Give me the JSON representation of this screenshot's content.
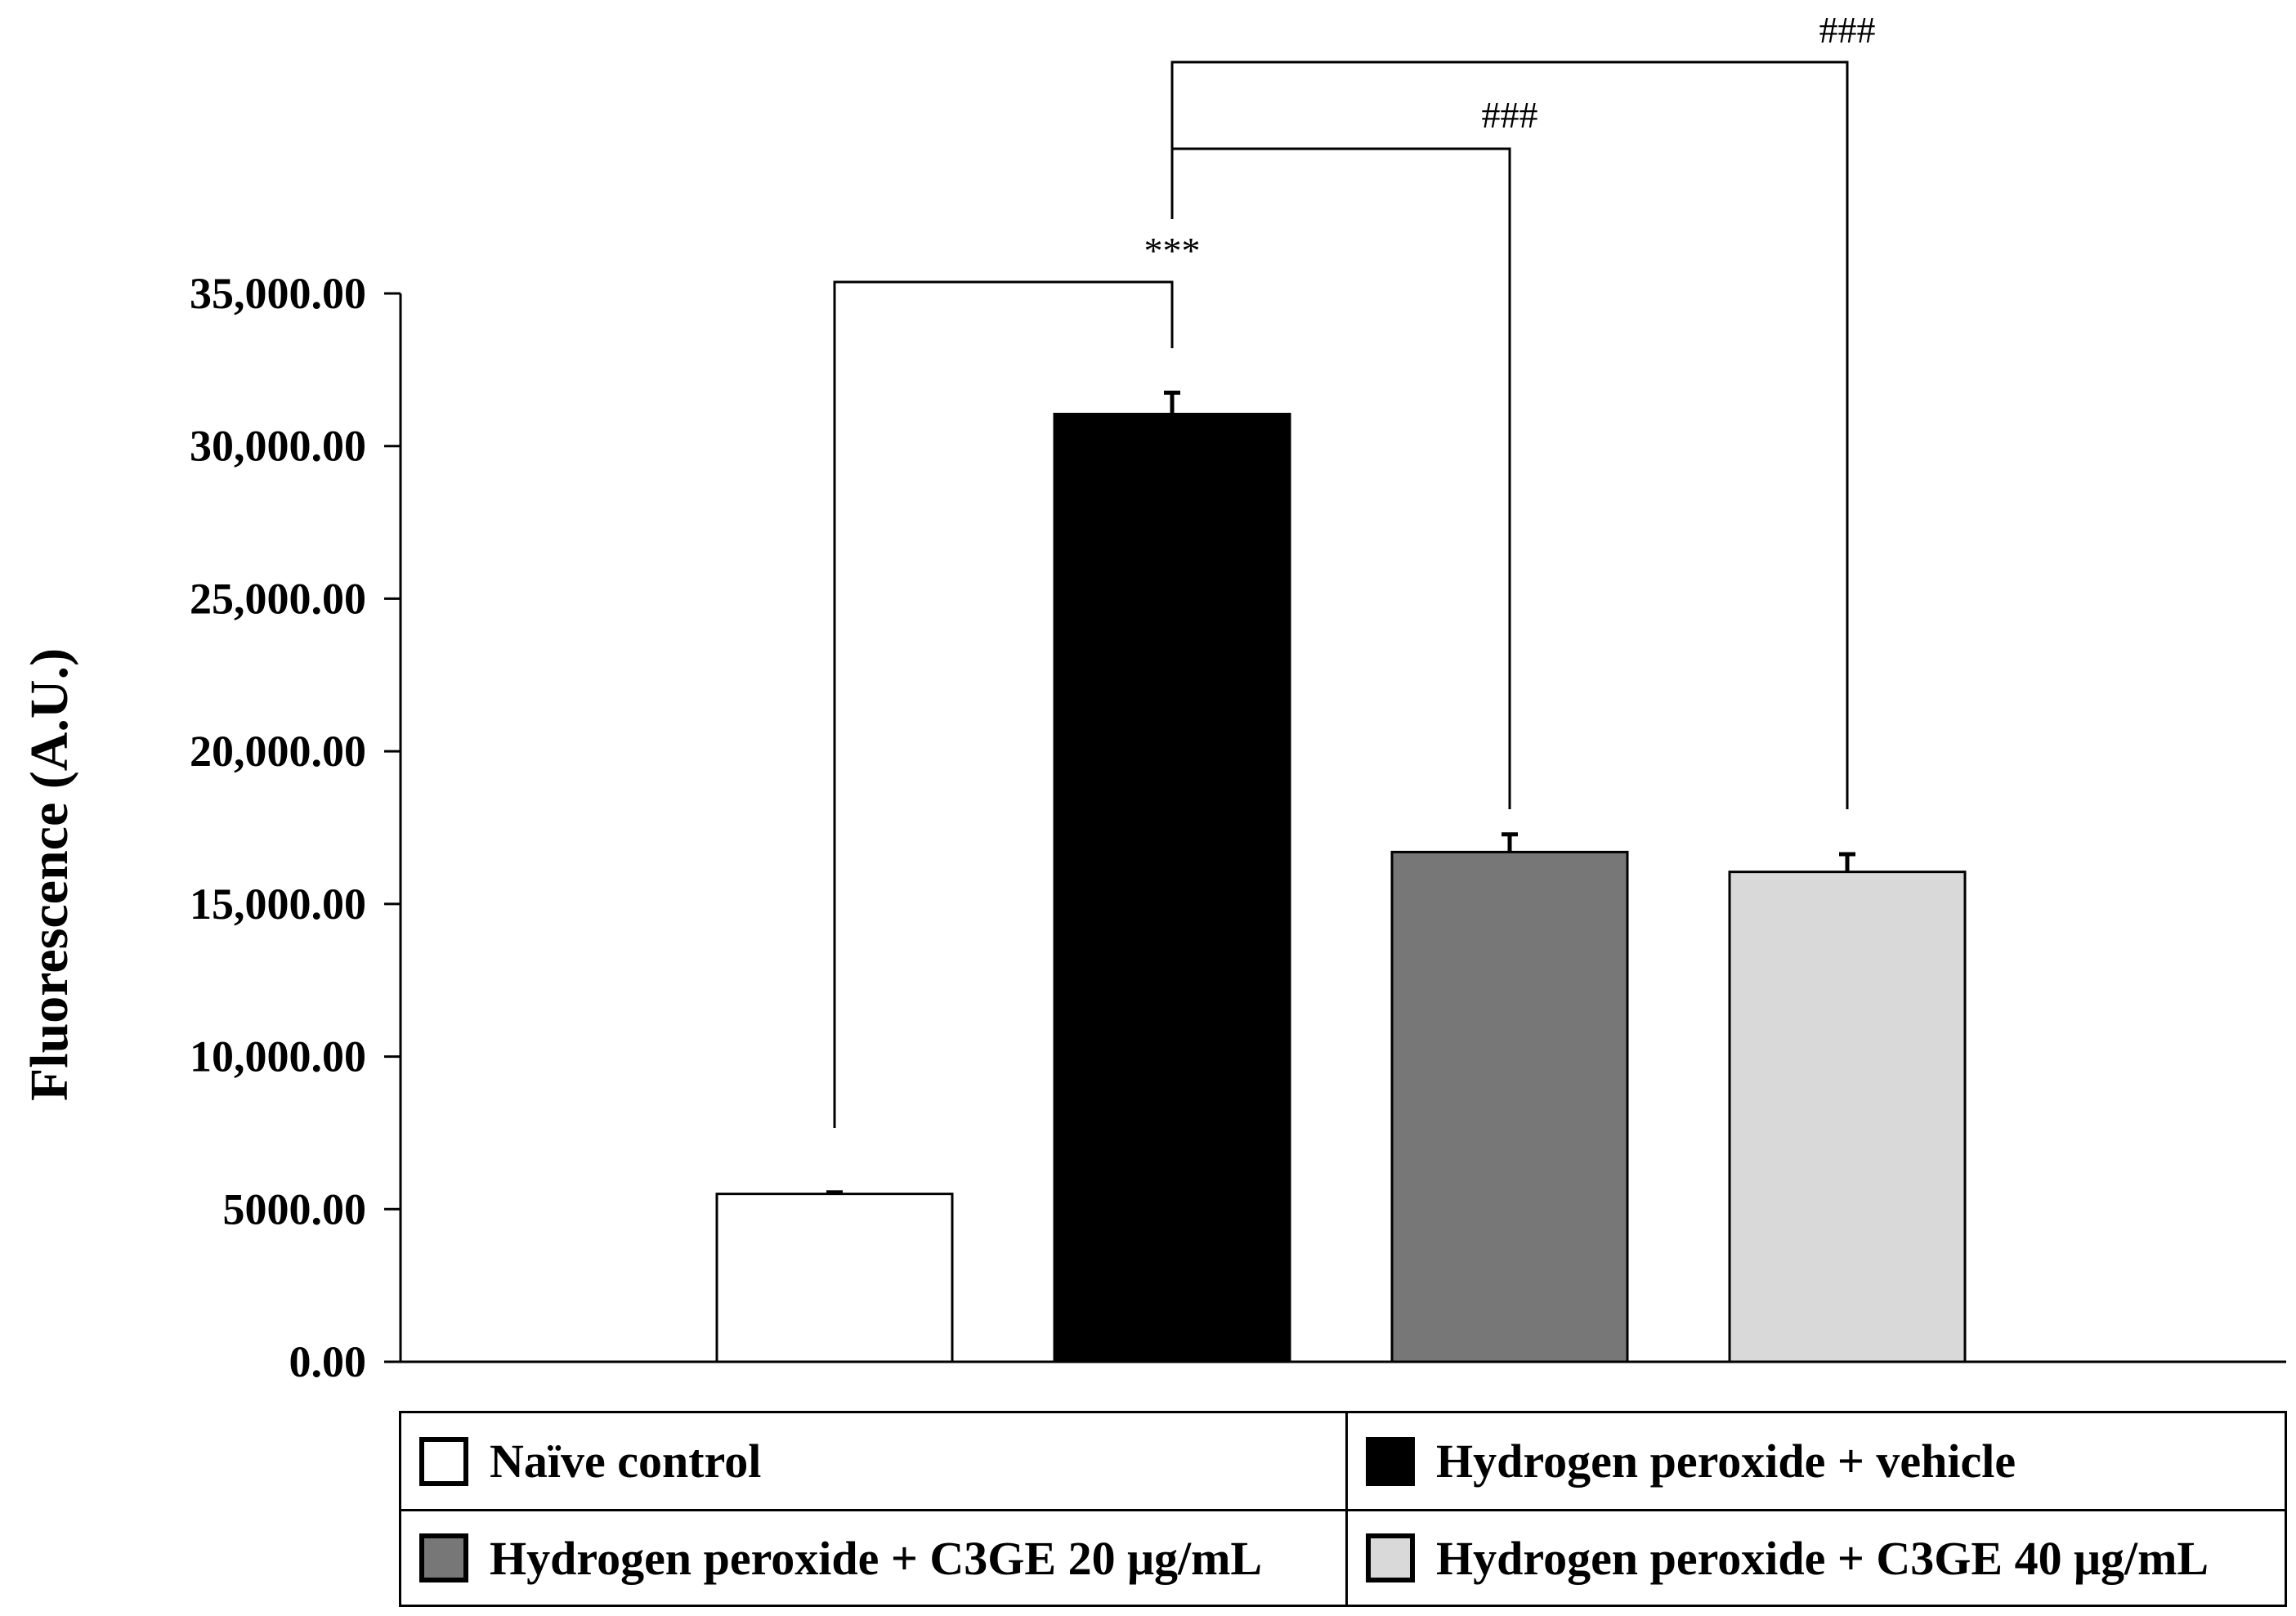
{
  "chart_data": {
    "type": "bar",
    "title": "",
    "xlabel": "",
    "ylabel": "Fluorescence (A.U.)",
    "ylim": [
      0,
      35000
    ],
    "yticks": [
      0,
      5000,
      10000,
      15000,
      20000,
      25000,
      30000,
      35000
    ],
    "ytick_labels": [
      "0.00",
      "5000.00",
      "10,000.00",
      "15,000.00",
      "20,000.00",
      "25,000.00",
      "30,000.00",
      "35,000.00"
    ],
    "categories": [
      "Naïve control",
      "Hydrogen peroxide + vehicle",
      "Hydrogen peroxide + C3GE 20 μg/mL",
      "Hydrogen peroxide + C3GE 40 μg/mL"
    ],
    "values": [
      5500,
      31050,
      16700,
      16050
    ],
    "errors": [
      50,
      700,
      580,
      580
    ],
    "colors": [
      "#ffffff",
      "#000000",
      "#777777",
      "#d9d9d9"
    ],
    "significance": [
      {
        "from": 0,
        "to": 1,
        "label": "***"
      },
      {
        "from": 1,
        "to": 2,
        "label": "###"
      },
      {
        "from": 1,
        "to": 3,
        "label": "###"
      }
    ],
    "legend": {
      "position": "bottom",
      "entries": [
        {
          "label": "Naïve control",
          "color": "#ffffff"
        },
        {
          "label": "Hydrogen peroxide + vehicle",
          "color": "#000000"
        },
        {
          "label": "Hydrogen peroxide + C3GE 20 μg/mL",
          "color": "#777777"
        },
        {
          "label": "Hydrogen peroxide + C3GE 40 μg/mL",
          "color": "#d9d9d9"
        }
      ]
    }
  }
}
